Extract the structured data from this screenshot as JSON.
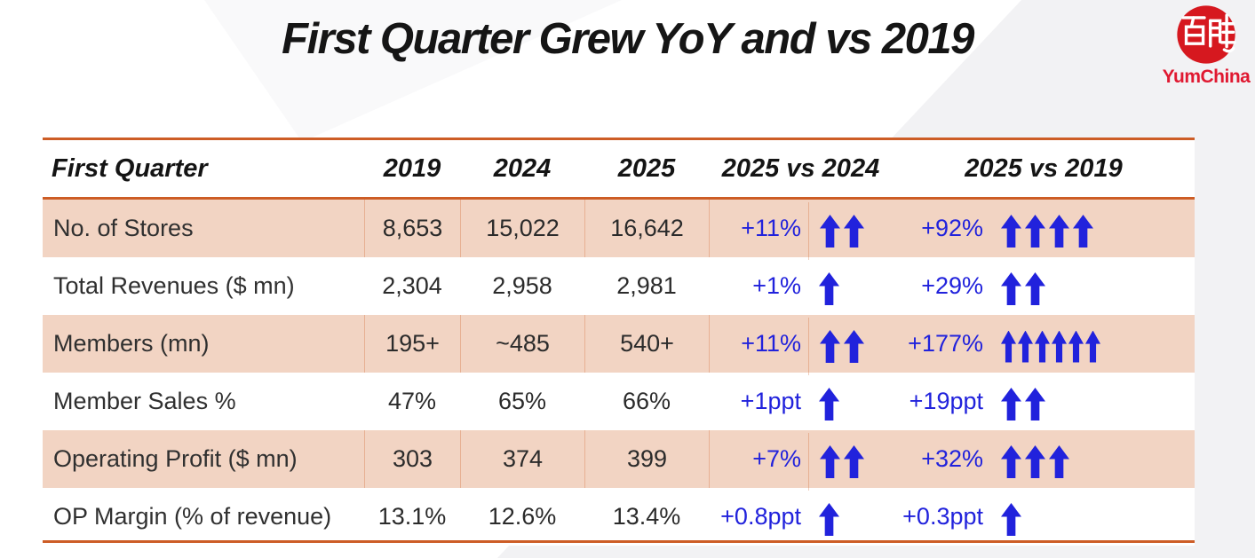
{
  "slide": {
    "title": "First Quarter Grew YoY and vs 2019"
  },
  "logo": {
    "brand": "YumChina",
    "seal_chars": "百胜"
  },
  "table": {
    "header": {
      "label": "First Quarter",
      "col_2019": "2019",
      "col_2024": "2024",
      "col_2025": "2025",
      "vs_2024": "2025 vs 2024",
      "vs_2019": "2025 vs 2019"
    },
    "rows": [
      {
        "label": "No. of Stores",
        "y2019": "8,653",
        "y2024": "15,022",
        "y2025": "16,642",
        "vs2024_text": "+11%",
        "vs2024_arrows": 2,
        "vs2019_text": "+92%",
        "vs2019_arrows": 4
      },
      {
        "label": "Total Revenues ($ mn)",
        "y2019": "2,304",
        "y2024": "2,958",
        "y2025": "2,981",
        "vs2024_text": "+1%",
        "vs2024_arrows": 1,
        "vs2019_text": "+29%",
        "vs2019_arrows": 2
      },
      {
        "label": "Members (mn)",
        "y2019": "195+",
        "y2024": "~485",
        "y2025": "540+",
        "vs2024_text": "+11%",
        "vs2024_arrows": 2,
        "vs2019_text": "+177%",
        "vs2019_arrows": 6
      },
      {
        "label": "Member Sales %",
        "y2019": "47%",
        "y2024": "65%",
        "y2025": "66%",
        "vs2024_text": "+1ppt",
        "vs2024_arrows": 1,
        "vs2019_text": "+19ppt",
        "vs2019_arrows": 2
      },
      {
        "label": "Operating Profit ($ mn)",
        "y2019": "303",
        "y2024": "374",
        "y2025": "399",
        "vs2024_text": "+7%",
        "vs2024_arrows": 2,
        "vs2019_text": "+32%",
        "vs2019_arrows": 3
      },
      {
        "label": "OP Margin (% of revenue)",
        "y2019": "13.1%",
        "y2024": "12.6%",
        "y2025": "13.4%",
        "vs2024_text": "+0.8ppt",
        "vs2024_arrows": 1,
        "vs2019_text": "+0.3ppt",
        "vs2019_arrows": 1
      }
    ]
  },
  "colors": {
    "accent_orange": "#cd5d26",
    "row_peach": "#f2d4c3",
    "arrow_blue": "#2122dc",
    "seal_red": "#d6181f",
    "brand_red": "#e01931",
    "background_wedge": "#f2f2f4"
  }
}
